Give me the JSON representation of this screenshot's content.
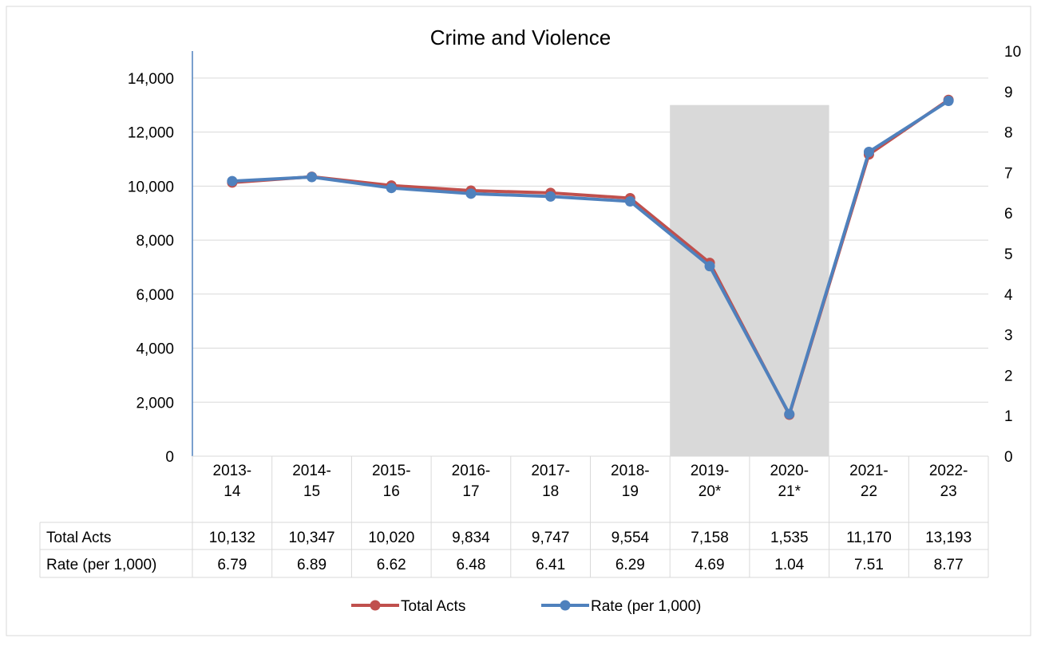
{
  "chart_data": {
    "type": "line",
    "title": "Crime and Violence",
    "categories": [
      [
        "2013-",
        "14"
      ],
      [
        "2014-",
        "15"
      ],
      [
        "2015-",
        "16"
      ],
      [
        "2016-",
        "17"
      ],
      [
        "2017-",
        "18"
      ],
      [
        "2018-",
        "19"
      ],
      [
        "2019-",
        "20*"
      ],
      [
        "2020-",
        "21*"
      ],
      [
        "2021-",
        "22"
      ],
      [
        "2022-",
        "23"
      ]
    ],
    "y_left": {
      "min": 0,
      "max": 14000,
      "step": 2000,
      "ticks": [
        "0",
        "2,000",
        "4,000",
        "6,000",
        "8,000",
        "10,000",
        "12,000",
        "14,000"
      ]
    },
    "y_right": {
      "min": 0,
      "max": 10,
      "step": 1,
      "ticks": [
        "0",
        "1",
        "2",
        "3",
        "4",
        "5",
        "6",
        "7",
        "8",
        "9",
        "10"
      ]
    },
    "highlight_categories": [
      6,
      7
    ],
    "highlight_top": 13000,
    "highlight_color": "#d9d9d9",
    "series": [
      {
        "name": "Total Acts",
        "axis": "left",
        "color": "#c0504d",
        "values": [
          10132,
          10347,
          10020,
          9834,
          9747,
          9554,
          7158,
          1535,
          11170,
          13193
        ],
        "labels": [
          "10,132",
          "10,347",
          "10,020",
          "9,834",
          "9,747",
          "9,554",
          "7,158",
          "1,535",
          "11,170",
          "13,193"
        ]
      },
      {
        "name": "Rate (per 1,000)",
        "axis": "right",
        "color": "#4f81bd",
        "values": [
          6.79,
          6.89,
          6.62,
          6.48,
          6.41,
          6.29,
          4.69,
          1.04,
          7.51,
          8.77
        ],
        "labels": [
          "6.79",
          "6.89",
          "6.62",
          "6.48",
          "6.41",
          "6.29",
          "4.69",
          "1.04",
          "7.51",
          "8.77"
        ]
      }
    ],
    "data_table": true,
    "legend_position": "bottom",
    "grid": true
  }
}
